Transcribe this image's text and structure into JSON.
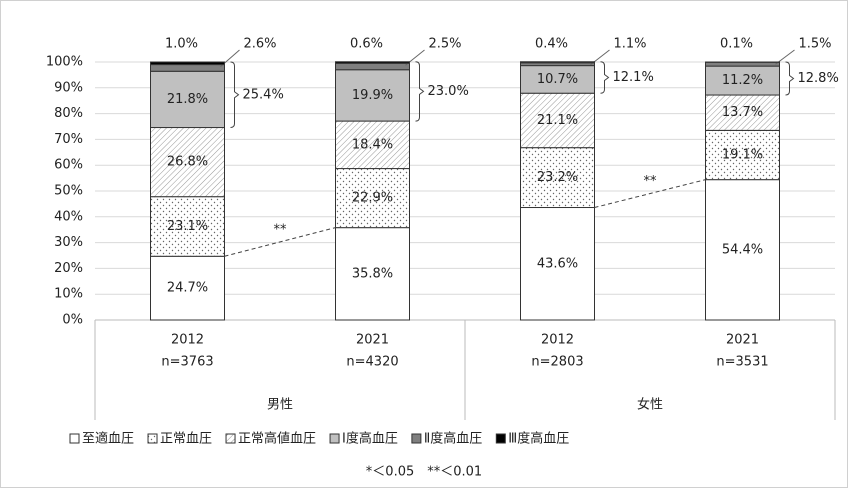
{
  "chart_data": {
    "type": "stacked-bar",
    "categories": [
      "2012",
      "2021",
      "2012",
      "2021"
    ],
    "sample_sizes": [
      "n=3763",
      "n=4320",
      "n=2803",
      "n=3531"
    ],
    "groups": [
      "男性",
      "女性"
    ],
    "series": [
      {
        "name": "至適血圧",
        "color": "#ffffff",
        "pattern": "none",
        "values": [
          24.7,
          35.8,
          43.6,
          54.4
        ],
        "value_labels": [
          "24.7%",
          "35.8%",
          "43.6%",
          "54.4%"
        ]
      },
      {
        "name": "正常血圧",
        "color": "#ffffff",
        "pattern": "dots",
        "values": [
          23.1,
          22.9,
          23.2,
          19.1
        ],
        "value_labels": [
          "23.1%",
          "22.9%",
          "23.2%",
          "19.1%"
        ]
      },
      {
        "name": "正常高値血圧",
        "color": "#ffffff",
        "pattern": "hatch",
        "values": [
          26.8,
          18.4,
          21.1,
          13.7
        ],
        "value_labels": [
          "26.8%",
          "18.4%",
          "21.1%",
          "13.7%"
        ]
      },
      {
        "name": "Ⅰ度高血圧",
        "color": "#c0c0c0",
        "pattern": "none",
        "values": [
          21.8,
          19.9,
          10.7,
          11.2
        ],
        "value_labels": [
          "21.8%",
          "19.9%",
          "10.7%",
          "11.2%"
        ]
      },
      {
        "name": "Ⅱ度高血圧",
        "color": "#7f7f7f",
        "pattern": "none",
        "values": [
          2.6,
          2.5,
          1.1,
          1.5
        ],
        "value_labels": [
          "2.6%",
          "2.5%",
          "1.1%",
          "1.5%"
        ]
      },
      {
        "name": "Ⅲ度高血圧",
        "color": "#000000",
        "pattern": "none",
        "values": [
          1.0,
          0.6,
          0.4,
          0.1
        ],
        "value_labels": [
          "1.0%",
          "0.6%",
          "0.4%",
          "0.1%"
        ]
      }
    ],
    "bracket_values": [
      25.4,
      23.0,
      12.1,
      12.8
    ],
    "bracket_labels": [
      "25.4%",
      "23.0%",
      "12.1%",
      "12.8%"
    ],
    "significance_labels": [
      "**",
      "**"
    ],
    "footnote": "*＜0.05　**＜0.01",
    "ylim": [
      0,
      100
    ],
    "yticks": [
      {
        "value": 0,
        "label": "0%"
      },
      {
        "value": 10,
        "label": "10%"
      },
      {
        "value": 20,
        "label": "20%"
      },
      {
        "value": 30,
        "label": "30%"
      },
      {
        "value": 40,
        "label": "40%"
      },
      {
        "value": 50,
        "label": "50%"
      },
      {
        "value": 60,
        "label": "60%"
      },
      {
        "value": 70,
        "label": "70%"
      },
      {
        "value": 80,
        "label": "80%"
      },
      {
        "value": 90,
        "label": "90%"
      },
      {
        "value": 100,
        "label": "100%"
      }
    ],
    "grid": true
  }
}
